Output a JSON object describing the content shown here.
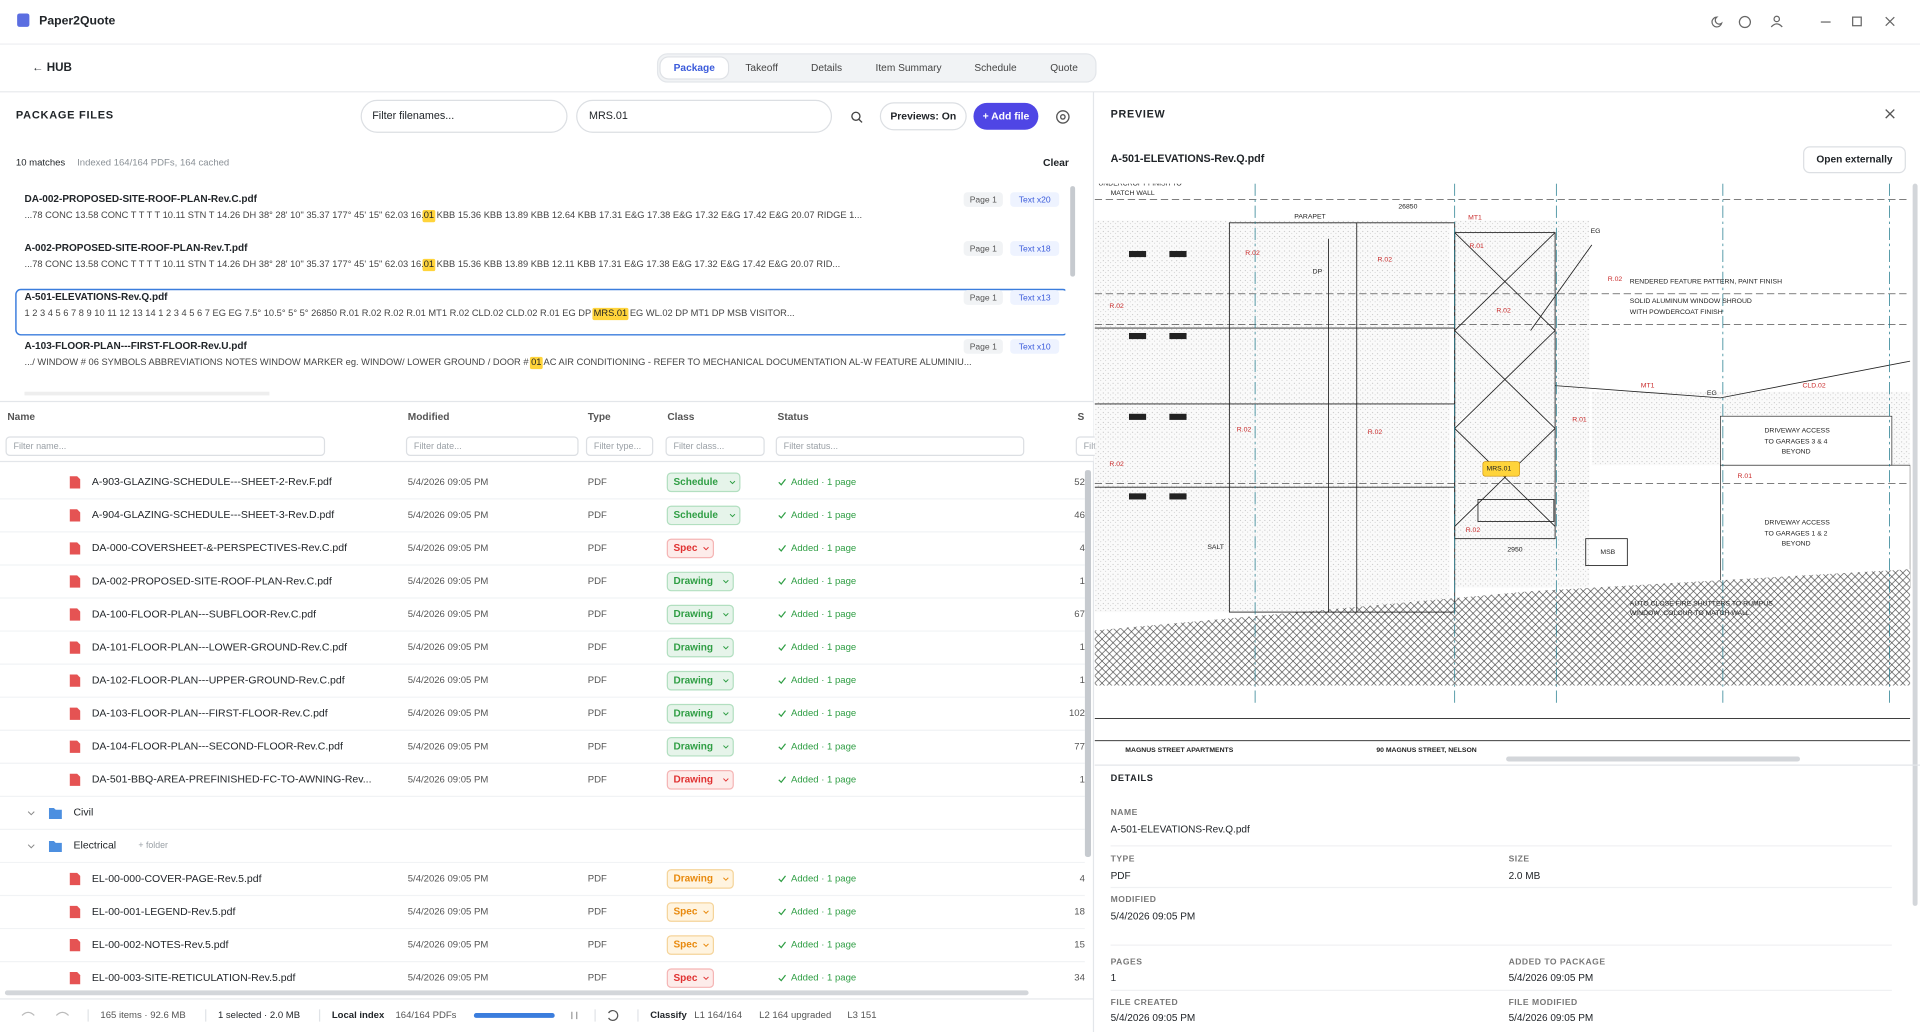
{
  "app": {
    "title": "Paper2Quote"
  },
  "nav": {
    "back": "← HUB",
    "tabs": [
      "Package",
      "Takeoff",
      "Details",
      "Item Summary",
      "Schedule",
      "Quote"
    ],
    "active": 0
  },
  "package": {
    "title": "PACKAGE FILES",
    "filter_placeholder": "Filter filenames...",
    "search": "MRS.01",
    "previews": "Previews: On",
    "add": "+ Add file",
    "matches": "10 matches",
    "indexed": "Indexed 164/164 PDFs, 164 cached",
    "clear": "Clear",
    "selected_result": 2,
    "results": [
      {
        "file": "DA-002-PROPOSED-SITE-ROOF-PLAN-Rev.C.pdf",
        "page": "Page 1",
        "hits": "Text x20",
        "before": "...78 CONC 13.58 CONC T T T T 10.11 STN T 14.26 DH 38° 28' 10\" 35.37 177° 45' 15\" 62.03 16.",
        "match": "01",
        "after": " KBB 15.36 KBB 13.89 KBB 12.64 KBB 17.31 E&G 17.38 E&G 17.32 E&G 17.42 E&G 20.07 RIDGE 1..."
      },
      {
        "file": "A-002-PROPOSED-SITE-ROOF-PLAN-Rev.T.pdf",
        "page": "Page 1",
        "hits": "Text x18",
        "before": "...78 CONC 13.58 CONC T T T T 10.11 STN T 14.26 DH 38° 28' 10\" 35.37 177° 45' 15\" 62.03 16.",
        "match": "01",
        "after": " KBB 15.36 KBB 13.89 KBB 12.11 KBB 17.31 E&G 17.38 E&G 17.32 E&G 17.42 E&G 20.07 RID..."
      },
      {
        "file": "A-501-ELEVATIONS-Rev.Q.pdf",
        "page": "Page 1",
        "hits": "Text x13",
        "before": "1 2 3 4 5 6 7 8 9 10 11 12 13 14 1 2 3 4 5 6 7 EG EG 7.5° 10.5° 5° 5° 26850 R.01 R.02 R.02 R.01 MT1 R.02 CLD.02 CLD.02 R.01 EG DP ",
        "match": "MRS.01",
        "after": " EG WL.02 DP MT1 DP MSB VISITOR..."
      },
      {
        "file": "A-103-FLOOR-PLAN---FIRST-FLOOR-Rev.U.pdf",
        "page": "Page 1",
        "hits": "Text x10",
        "before": ".../ WINDOW # 06 SYMBOLS ABBREVIATIONS NOTES WINDOW MARKER eg. WINDOW/ LOWER GROUND / DOOR # ",
        "match": "01",
        "after": " AC AIR CONDITIONING - REFER TO MECHANICAL DOCUMENTATION AL-W FEATURE ALUMINIU..."
      }
    ]
  },
  "table": {
    "columns": [
      "Name",
      "Modified",
      "Type",
      "Class",
      "Status",
      "S"
    ],
    "filters": [
      "Filter name...",
      "Filter date...",
      "Filter type...",
      "Filter class...",
      "Filter status...",
      "Filte"
    ],
    "rows": [
      {
        "kind": "file",
        "name": "A-903-GLAZING-SCHEDULE---SHEET-2-Rev.F.pdf",
        "modified": "5/4/2026 09:05 PM",
        "type": "PDF",
        "class": "Schedule",
        "tone": "green",
        "status": "Added · 1 page",
        "size": "52"
      },
      {
        "kind": "file",
        "name": "A-904-GLAZING-SCHEDULE---SHEET-3-Rev.D.pdf",
        "modified": "5/4/2026 09:05 PM",
        "type": "PDF",
        "class": "Schedule",
        "tone": "green",
        "status": "Added · 1 page",
        "size": "46"
      },
      {
        "kind": "file",
        "name": "DA-000-COVERSHEET-&-PERSPECTIVES-Rev.C.pdf",
        "modified": "5/4/2026 09:05 PM",
        "type": "PDF",
        "class": "Spec",
        "tone": "red",
        "status": "Added · 1 page",
        "size": "4"
      },
      {
        "kind": "file",
        "name": "DA-002-PROPOSED-SITE-ROOF-PLAN-Rev.C.pdf",
        "modified": "5/4/2026 09:05 PM",
        "type": "PDF",
        "class": "Drawing",
        "tone": "green",
        "status": "Added · 1 page",
        "size": "1"
      },
      {
        "kind": "file",
        "name": "DA-100-FLOOR-PLAN---SUBFLOOR-Rev.C.pdf",
        "modified": "5/4/2026 09:05 PM",
        "type": "PDF",
        "class": "Drawing",
        "tone": "green",
        "status": "Added · 1 page",
        "size": "67"
      },
      {
        "kind": "file",
        "name": "DA-101-FLOOR-PLAN---LOWER-GROUND-Rev.C.pdf",
        "modified": "5/4/2026 09:05 PM",
        "type": "PDF",
        "class": "Drawing",
        "tone": "green",
        "status": "Added · 1 page",
        "size": "1"
      },
      {
        "kind": "file",
        "name": "DA-102-FLOOR-PLAN---UPPER-GROUND-Rev.C.pdf",
        "modified": "5/4/2026 09:05 PM",
        "type": "PDF",
        "class": "Drawing",
        "tone": "green",
        "status": "Added · 1 page",
        "size": "1"
      },
      {
        "kind": "file",
        "name": "DA-103-FLOOR-PLAN---FIRST-FLOOR-Rev.C.pdf",
        "modified": "5/4/2026 09:05 PM",
        "type": "PDF",
        "class": "Drawing",
        "tone": "green",
        "status": "Added · 1 page",
        "size": "102"
      },
      {
        "kind": "file",
        "name": "DA-104-FLOOR-PLAN---SECOND-FLOOR-Rev.C.pdf",
        "modified": "5/4/2026 09:05 PM",
        "type": "PDF",
        "class": "Drawing",
        "tone": "green",
        "status": "Added · 1 page",
        "size": "77"
      },
      {
        "kind": "file",
        "name": "DA-501-BBQ-AREA-PREFINISHED-FC-TO-AWNING-Rev...",
        "modified": "5/4/2026 09:05 PM",
        "type": "PDF",
        "class": "Drawing",
        "tone": "red",
        "status": "Added · 1 page",
        "size": "1"
      },
      {
        "kind": "folder",
        "name": "Civil"
      },
      {
        "kind": "folder",
        "name": "Electrical",
        "action": "+ folder"
      },
      {
        "kind": "file",
        "name": "EL-00-000-COVER-PAGE-Rev.5.pdf",
        "modified": "5/4/2026 09:05 PM",
        "type": "PDF",
        "class": "Drawing",
        "tone": "orange",
        "status": "Added · 1 page",
        "size": "4"
      },
      {
        "kind": "file",
        "name": "EL-00-001-LEGEND-Rev.5.pdf",
        "modified": "5/4/2026 09:05 PM",
        "type": "PDF",
        "class": "Spec",
        "tone": "orange",
        "status": "Added · 1 page",
        "size": "18"
      },
      {
        "kind": "file",
        "name": "EL-00-002-NOTES-Rev.5.pdf",
        "modified": "5/4/2026 09:05 PM",
        "type": "PDF",
        "class": "Spec",
        "tone": "orange",
        "status": "Added · 1 page",
        "size": "15"
      },
      {
        "kind": "file",
        "name": "EL-00-003-SITE-RETICULATION-Rev.5.pdf",
        "modified": "5/4/2026 09:05 PM",
        "type": "PDF",
        "class": "Spec",
        "tone": "red",
        "status": "Added · 1 page",
        "size": "34"
      }
    ]
  },
  "footer": {
    "items": "165 items · 92.6 MB",
    "selected": "1 selected · 2.0 MB",
    "index_label": "Local index",
    "index_value": "164/164 PDFs",
    "classify": "Classify",
    "l1": "L1 164/164",
    "l2": "L2 164 upgraded",
    "l3": "L3 151"
  },
  "preview": {
    "title": "PREVIEW",
    "file": "A-501-ELEVATIONS-Rev.Q.pdf",
    "open": "Open externally",
    "labels": [
      "UNDERCROFT FINISH TO",
      "MATCH WALL",
      "PARAPET",
      "26850",
      "MT1",
      "EG",
      "R.02",
      "R.02",
      "R.02",
      "R.02",
      "R.02",
      "R.02",
      "R.02",
      "R.02",
      "R.02",
      "R.01",
      "R.01",
      "R.01",
      "DP",
      "RENDERED FEATURE PATTERN, PAINT FINISH",
      "SOLID ALUMINUM WINDOW SHROUD",
      "WITH POWDERCOAT FINISH",
      "MT1",
      "CLD.02",
      "EG",
      "DRIVEWAY ACCESS",
      "TO GARAGES 3 & 4",
      "BEYOND",
      "DRIVEWAY ACCESS",
      "TO GARAGES 1 & 2",
      "BEYOND",
      "MRS.01",
      "SALT",
      "MSB",
      "2950",
      "AUTO CLOSE FIRE SHUTTERS TO RUMPUS",
      "WINDOW. COLOUR TO MATCH WALL",
      "MAGNUS STREET APARTMENTS",
      "90 MAGNUS STREET, NELSON"
    ],
    "highlight_label": 31
  },
  "details": {
    "title": "DETAILS",
    "fields": [
      {
        "label": "NAME",
        "value": "A-501-ELEVATIONS-Rev.Q.pdf"
      },
      {
        "label": "TYPE",
        "value": "PDF"
      },
      {
        "label": "SIZE",
        "value": "2.0 MB"
      },
      {
        "label": "MODIFIED",
        "value": "5/4/2026 09:05 PM"
      },
      {
        "label": "PAGES",
        "value": "1"
      },
      {
        "label": "ADDED TO PACKAGE",
        "value": "5/4/2026 09:05 PM"
      },
      {
        "label": "FILE CREATED",
        "value": "5/4/2026 09:05 PM"
      },
      {
        "label": "FILE MODIFIED",
        "value": "5/4/2026 09:05 PM"
      }
    ]
  }
}
